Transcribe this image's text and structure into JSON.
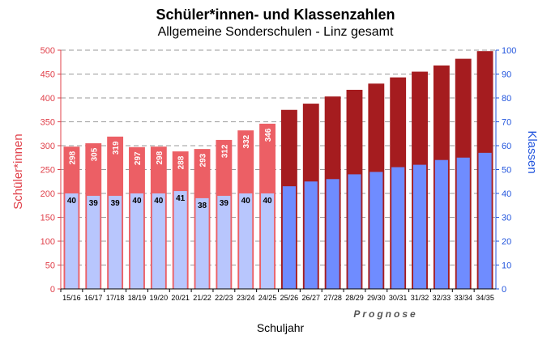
{
  "chart_data": {
    "type": "bar",
    "title": "Schüler*innen- und Klassenzahlen",
    "subtitle": "Allgemeine Sonderschulen - Linz gesamt",
    "xlabel": "Schuljahr",
    "ylabel_left": "Schüler*innen",
    "ylabel_right": "Klassen",
    "ylim_left": [
      0,
      500
    ],
    "ylim_right": [
      0,
      100
    ],
    "yticks_left": [
      "0",
      "50",
      "100",
      "150",
      "200",
      "250",
      "300",
      "350",
      "400",
      "450",
      "500"
    ],
    "yticks_right": [
      "0",
      "10",
      "20",
      "30",
      "40",
      "50",
      "60",
      "70",
      "80",
      "90",
      "100"
    ],
    "grid": true,
    "prognose_label": "Prognose",
    "prognose_from_index": 10,
    "categories": [
      "15/16",
      "16/17",
      "17/18",
      "18/19",
      "19/20",
      "20/21",
      "21/22",
      "22/23",
      "23/24",
      "24/25",
      "25/26",
      "26/27",
      "27/28",
      "28/29",
      "29/30",
      "30/31",
      "31/32",
      "32/33",
      "33/34",
      "34/35"
    ],
    "series": [
      {
        "name": "Schüler*innen",
        "axis": "left",
        "values": [
          298,
          305,
          319,
          297,
          298,
          288,
          293,
          312,
          332,
          346,
          375,
          388,
          403,
          417,
          430,
          443,
          455,
          468,
          482,
          498
        ],
        "labels": [
          "298",
          "305",
          "319",
          "297",
          "298",
          "288",
          "293",
          "312",
          "332",
          "346"
        ]
      },
      {
        "name": "Klassen",
        "axis": "right",
        "values": [
          40,
          39,
          39,
          40,
          40,
          41,
          38,
          39,
          40,
          40,
          43,
          45,
          46,
          48,
          49,
          51,
          52,
          54,
          55,
          57
        ],
        "labels": [
          "40",
          "39",
          "39",
          "40",
          "40",
          "41",
          "38",
          "39",
          "40",
          "40"
        ]
      }
    ],
    "colors": {
      "students_actual": "#ec5f65",
      "students_forecast": "#a51c1f",
      "classes_actual": "#b8c6fd",
      "classes_forecast": "#6f8cff",
      "left_axis": "#e0404a",
      "right_axis": "#2255dd"
    }
  }
}
